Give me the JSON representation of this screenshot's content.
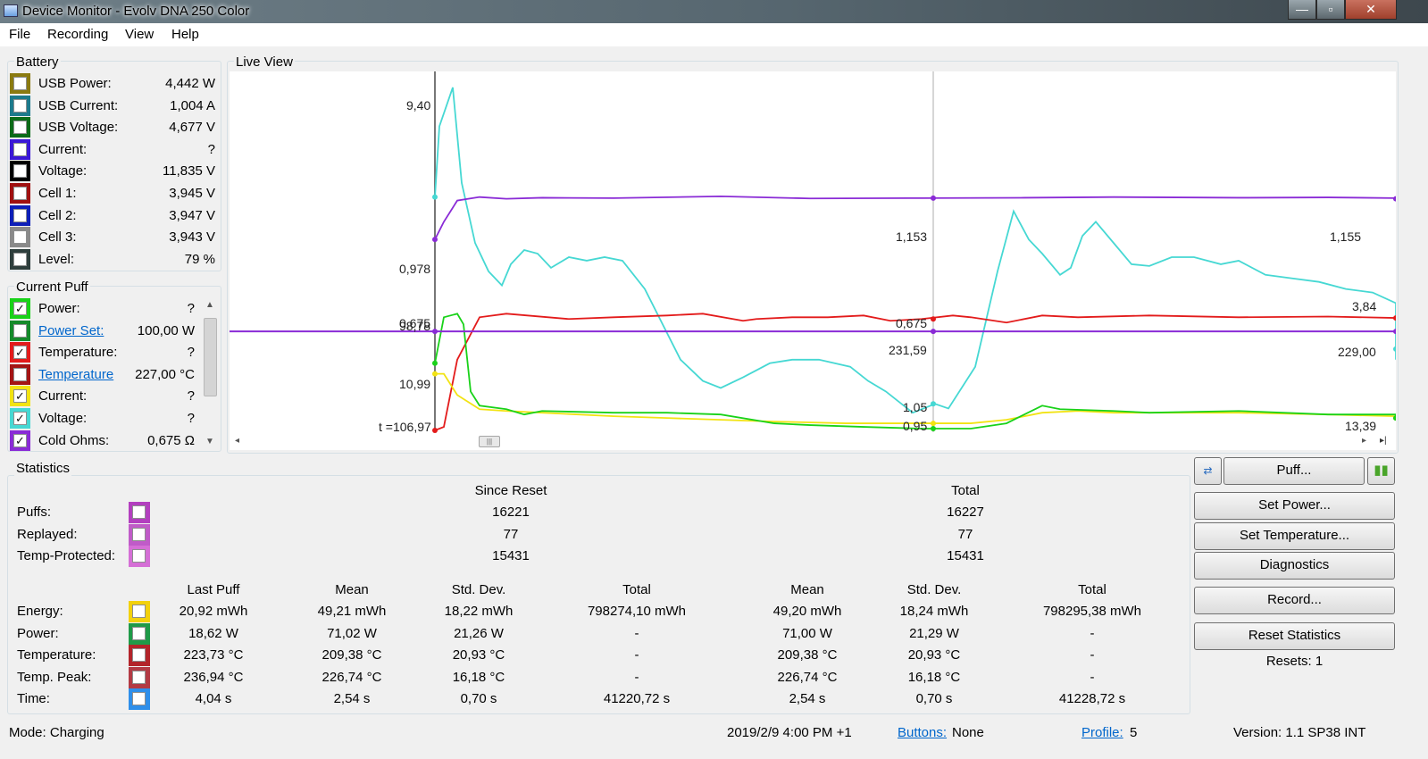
{
  "window": {
    "title": "Device Monitor - Evolv DNA 250 Color",
    "btn_min": "—",
    "btn_max": "▫",
    "btn_close": "✕"
  },
  "menu": [
    "File",
    "Recording",
    "View",
    "Help"
  ],
  "battery": {
    "title": "Battery",
    "items": [
      {
        "label": "USB Power:",
        "value": "4,442 W",
        "color": "#8a7a10",
        "checked": false
      },
      {
        "label": "USB Current:",
        "value": "1,004 A",
        "color": "#1c7a8c",
        "checked": false
      },
      {
        "label": "USB Voltage:",
        "value": "4,677 V",
        "color": "#0b6b18",
        "checked": false
      },
      {
        "label": "Current:",
        "value": "?",
        "color": "#3a17d6",
        "checked": false
      },
      {
        "label": "Voltage:",
        "value": "11,835 V",
        "color": "#000000",
        "checked": false
      },
      {
        "label": "Cell 1:",
        "value": "3,945 V",
        "color": "#a01010",
        "checked": false
      },
      {
        "label": "Cell 2:",
        "value": "3,947 V",
        "color": "#0d1fb8",
        "checked": false
      },
      {
        "label": "Cell 3:",
        "value": "3,943 V",
        "color": "#8a8a8a",
        "checked": false
      },
      {
        "label": "Level:",
        "value": "79 %",
        "color": "#2e3e3c",
        "checked": false
      }
    ]
  },
  "puff": {
    "title": "Current Puff",
    "items": [
      {
        "label": "Power:",
        "value": "?",
        "color": "#19d219",
        "checked": true,
        "link": false
      },
      {
        "label": "Power Set:",
        "value": "100,00 W",
        "color": "#158a2a",
        "checked": false,
        "link": true
      },
      {
        "label": "Temperature:",
        "value": "?",
        "color": "#e31b1b",
        "checked": true,
        "link": false
      },
      {
        "label": "Temperature",
        "value": "227,00 °C",
        "color": "#a41414",
        "checked": false,
        "link": true
      },
      {
        "label": "Current:",
        "value": "?",
        "color": "#f2e313",
        "checked": true,
        "link": false
      },
      {
        "label": "Voltage:",
        "value": "?",
        "color": "#46d8d3",
        "checked": true,
        "link": false
      },
      {
        "label": "Cold Ohms:",
        "value": "0,675 Ω",
        "color": "#8a2bd6",
        "checked": true,
        "link": false
      }
    ]
  },
  "live_view": {
    "title": "Live View"
  },
  "chart_data": {
    "type": "line",
    "series": [
      {
        "color": "#46d8d3",
        "values": [
          [
            0,
            6.6
          ],
          [
            5,
            8.6
          ],
          [
            20,
            9.7
          ],
          [
            30,
            7.0
          ],
          [
            45,
            5.3
          ],
          [
            60,
            4.5
          ],
          [
            75,
            4.1
          ],
          [
            85,
            4.7
          ],
          [
            100,
            5.1
          ],
          [
            115,
            5.0
          ],
          [
            130,
            4.6
          ],
          [
            150,
            4.9
          ],
          [
            170,
            4.8
          ],
          [
            190,
            4.9
          ],
          [
            210,
            4.8
          ],
          [
            235,
            4.0
          ],
          [
            275,
            2.0
          ],
          [
            300,
            1.4
          ],
          [
            320,
            1.2
          ],
          [
            345,
            1.5
          ],
          [
            375,
            1.9
          ],
          [
            400,
            2.0
          ],
          [
            430,
            2.0
          ],
          [
            465,
            1.8
          ],
          [
            485,
            1.4
          ],
          [
            505,
            1.1
          ],
          [
            535,
            0.5
          ],
          [
            560,
            0.75
          ],
          [
            575,
            0.62
          ],
          [
            605,
            1.8
          ],
          [
            630,
            4.5
          ],
          [
            648,
            6.2
          ],
          [
            665,
            5.4
          ],
          [
            680,
            5.0
          ],
          [
            700,
            4.4
          ],
          [
            712,
            4.6
          ],
          [
            725,
            5.5
          ],
          [
            740,
            5.9
          ],
          [
            760,
            5.3
          ],
          [
            780,
            4.7
          ],
          [
            800,
            4.65
          ],
          [
            825,
            4.9
          ],
          [
            850,
            4.9
          ],
          [
            880,
            4.7
          ],
          [
            900,
            4.8
          ],
          [
            930,
            4.4
          ],
          [
            960,
            4.3
          ],
          [
            990,
            4.2
          ],
          [
            1020,
            4.0
          ],
          [
            1050,
            3.9
          ],
          [
            1080,
            3.6
          ],
          [
            1110,
            3.5
          ],
          [
            1160,
            3.1
          ],
          [
            1200,
            2.85
          ],
          [
            1250,
            2.6
          ],
          [
            1290,
            2.3
          ],
          [
            1300,
            2.0
          ]
        ]
      },
      {
        "color": "#8a2bd6",
        "values": [
          [
            0,
            5.4
          ],
          [
            10,
            5.9
          ],
          [
            25,
            6.5
          ],
          [
            50,
            6.6
          ],
          [
            80,
            6.55
          ],
          [
            120,
            6.58
          ],
          [
            200,
            6.57
          ],
          [
            320,
            6.62
          ],
          [
            420,
            6.56
          ],
          [
            545,
            6.57
          ],
          [
            660,
            6.58
          ],
          [
            760,
            6.6
          ],
          [
            900,
            6.58
          ],
          [
            1000,
            6.59
          ],
          [
            1150,
            6.57
          ],
          [
            1300,
            6.55
          ]
        ]
      },
      {
        "color": "#e31b1b",
        "values": [
          [
            0,
            0
          ],
          [
            10,
            0.1
          ],
          [
            25,
            2.0
          ],
          [
            50,
            3.2
          ],
          [
            80,
            3.3
          ],
          [
            150,
            3.15
          ],
          [
            200,
            3.2
          ],
          [
            260,
            3.25
          ],
          [
            300,
            3.3
          ],
          [
            345,
            3.1
          ],
          [
            360,
            3.15
          ],
          [
            400,
            3.2
          ],
          [
            440,
            3.2
          ],
          [
            480,
            3.25
          ],
          [
            510,
            3.1
          ],
          [
            545,
            3.15
          ],
          [
            580,
            3.25
          ],
          [
            600,
            3.2
          ],
          [
            640,
            3.05
          ],
          [
            680,
            3.25
          ],
          [
            720,
            3.2
          ],
          [
            800,
            3.25
          ],
          [
            900,
            3.2
          ],
          [
            1000,
            3.22
          ],
          [
            1100,
            3.18
          ],
          [
            1200,
            3.2
          ],
          [
            1300,
            3.18
          ]
        ]
      },
      {
        "color": "#f2e313",
        "values": [
          [
            0,
            1.6
          ],
          [
            10,
            1.6
          ],
          [
            25,
            1.0
          ],
          [
            50,
            0.6
          ],
          [
            80,
            0.55
          ],
          [
            120,
            0.5
          ],
          [
            200,
            0.4
          ],
          [
            260,
            0.35
          ],
          [
            320,
            0.3
          ],
          [
            380,
            0.25
          ],
          [
            460,
            0.2
          ],
          [
            545,
            0.2
          ],
          [
            600,
            0.2
          ],
          [
            640,
            0.3
          ],
          [
            680,
            0.5
          ],
          [
            720,
            0.55
          ],
          [
            760,
            0.5
          ],
          [
            800,
            0.5
          ],
          [
            900,
            0.5
          ],
          [
            1000,
            0.45
          ],
          [
            1100,
            0.4
          ],
          [
            1200,
            0.35
          ],
          [
            1300,
            0.35
          ]
        ]
      },
      {
        "color": "#19d219",
        "values": [
          [
            0,
            1.9
          ],
          [
            10,
            3.2
          ],
          [
            25,
            3.3
          ],
          [
            32,
            3.0
          ],
          [
            40,
            1.1
          ],
          [
            50,
            0.7
          ],
          [
            80,
            0.6
          ],
          [
            100,
            0.45
          ],
          [
            120,
            0.55
          ],
          [
            200,
            0.5
          ],
          [
            260,
            0.5
          ],
          [
            320,
            0.45
          ],
          [
            380,
            0.2
          ],
          [
            420,
            0.15
          ],
          [
            480,
            0.1
          ],
          [
            545,
            0.05
          ],
          [
            600,
            0.05
          ],
          [
            640,
            0.2
          ],
          [
            680,
            0.7
          ],
          [
            700,
            0.6
          ],
          [
            760,
            0.55
          ],
          [
            800,
            0.5
          ],
          [
            900,
            0.55
          ],
          [
            1000,
            0.45
          ],
          [
            1100,
            0.45
          ],
          [
            1200,
            0.4
          ],
          [
            1300,
            0.35
          ]
        ]
      },
      {
        "color": "#8a2bd6",
        "values": [
          [
            -230,
            2.8
          ],
          [
            1306,
            2.8
          ]
        ]
      }
    ],
    "cursors": [
      0,
      558
    ],
    "labels": {
      "l1": "9,40",
      "l2": "0,978",
      "l3": "0,675",
      "l3b": "98,78",
      "l4": "10,99",
      "l5": "t =106,97",
      "m1": "1,153",
      "m2": "0,675",
      "m3": "231,59",
      "m4": "1,05",
      "m5": "0,95",
      "r1": "1,155",
      "r2": "3,84",
      "r3": "229,00",
      "r4": "13,39"
    },
    "grid": false
  },
  "statistics": {
    "title": "Statistics",
    "since_reset": "Since Reset",
    "total": "Total",
    "counts": [
      {
        "label": "Puffs:",
        "since": "16221",
        "total": "16227",
        "color": "#b33fbf"
      },
      {
        "label": "Replayed:",
        "since": "77",
        "total": "77",
        "color": "#c05bc8"
      },
      {
        "label": "Temp-Protected:",
        "since": "15431",
        "total": "15431",
        "color": "#d56fd6"
      }
    ],
    "headers": [
      "Last Puff",
      "Mean",
      "Std. Dev.",
      "Total",
      "Mean",
      "Std. Dev.",
      "Total"
    ],
    "rows": [
      {
        "label": "Energy:",
        "color": "#f2d10d",
        "values": [
          "20,92 mWh",
          "49,21 mWh",
          "18,22 mWh",
          "798274,10 mWh",
          "49,20 mWh",
          "18,24 mWh",
          "798295,38 mWh"
        ]
      },
      {
        "label": "Power:",
        "color": "#1f9a48",
        "values": [
          "18,62 W",
          "71,02 W",
          "21,26 W",
          "-",
          "71,00 W",
          "21,29 W",
          "-"
        ]
      },
      {
        "label": "Temperature:",
        "color": "#b3242a",
        "values": [
          "223,73 °C",
          "209,38 °C",
          "20,93 °C",
          "-",
          "209,38 °C",
          "20,93 °C",
          "-"
        ]
      },
      {
        "label": "Temp. Peak:",
        "color": "#b33a44",
        "values": [
          "236,94 °C",
          "226,74 °C",
          "16,18 °C",
          "-",
          "226,74 °C",
          "16,18 °C",
          "-"
        ]
      },
      {
        "label": "Time:",
        "color": "#2f8fea",
        "values": [
          "4,04 s",
          "2,54 s",
          "0,70 s",
          "41220,72 s",
          "2,54 s",
          "0,70 s",
          "41228,72 s"
        ]
      }
    ]
  },
  "buttons": {
    "puff": "Puff...",
    "set_power": "Set Power...",
    "set_temperature": "Set Temperature...",
    "diagnostics": "Diagnostics",
    "record": "Record...",
    "reset_statistics": "Reset Statistics",
    "resets": "Resets: 1"
  },
  "status": {
    "mode": "Mode: Charging",
    "datetime": "2019/2/9 4:00 PM +1",
    "buttons_label": "Buttons:",
    "buttons_value": "None",
    "profile_label": "Profile:",
    "profile_value": "5",
    "version": "Version: 1.1 SP38 INT"
  }
}
